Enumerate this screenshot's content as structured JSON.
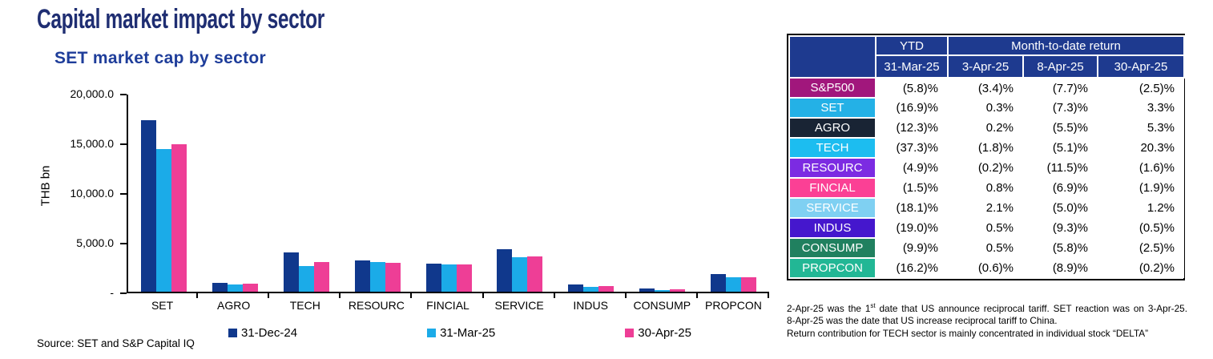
{
  "page": {
    "title": "Capital market impact by sector",
    "source": "Source: SET and S&P Capital IQ"
  },
  "chart_data": {
    "type": "bar",
    "title": "SET market cap by sector",
    "ylabel": "THB bn",
    "ylim": [
      0,
      20000
    ],
    "ytick_labels": [
      "20,000.0",
      "15,000.0",
      "10,000.0",
      "5,000.0",
      "-"
    ],
    "grid": false,
    "legend_position": "bottom",
    "categories": [
      "SET",
      "AGRO",
      "TECH",
      "RESOURC",
      "FINCIAL",
      "SERVICE",
      "INDUS",
      "CONSUMP",
      "PROPCON"
    ],
    "series": [
      {
        "name": "31-Dec-24",
        "color": "#10388c",
        "values": [
          17400,
          900,
          3980,
          3200,
          2880,
          4300,
          700,
          300,
          1830
        ]
      },
      {
        "name": "31-Mar-25",
        "color": "#1babe8",
        "values": [
          14450,
          730,
          2600,
          3000,
          2740,
          3500,
          500,
          200,
          1440
        ]
      },
      {
        "name": "30-Apr-25",
        "color": "#ee3e96",
        "values": [
          15000,
          850,
          3050,
          2950,
          2740,
          3570,
          590,
          230,
          1480
        ]
      }
    ]
  },
  "table": {
    "corner_label": "",
    "ytd_header": "YTD",
    "mtd_header": "Month-to-date return",
    "date_headers": [
      "31-Mar-25",
      "3-Apr-25",
      "8-Apr-25",
      "30-Apr-25"
    ],
    "header_bg": "#1e3a8f",
    "rows": [
      {
        "label": "S&P500",
        "color": "#a1177c",
        "values": [
          "(5.8)%",
          "(3.4)%",
          "(7.7)%",
          "(2.5)%"
        ]
      },
      {
        "label": "SET",
        "color": "#24b1e6",
        "values": [
          "(16.9)%",
          "0.3%",
          "(7.3)%",
          "3.3%"
        ]
      },
      {
        "label": "AGRO",
        "color": "#192434",
        "values": [
          "(12.3)%",
          "0.2%",
          "(5.5)%",
          "5.3%"
        ]
      },
      {
        "label": "TECH",
        "color": "#1cbdf0",
        "values": [
          "(37.3)%",
          "(1.8)%",
          "(5.1)%",
          "20.3%"
        ]
      },
      {
        "label": "RESOURC",
        "color": "#7c2be2",
        "values": [
          "(4.9)%",
          "(0.2)%",
          "(11.5)%",
          "(1.6)%"
        ]
      },
      {
        "label": "FINCIAL",
        "color": "#fb4095",
        "values": [
          "(1.5)%",
          "0.8%",
          "(6.9)%",
          "(1.9)%"
        ]
      },
      {
        "label": "SERVICE",
        "color": "#7fd0f2",
        "values": [
          "(18.1)%",
          "2.1%",
          "(5.0)%",
          "1.2%"
        ]
      },
      {
        "label": "INDUS",
        "color": "#4517cd",
        "values": [
          "(19.0)%",
          "0.5%",
          "(9.3)%",
          "(0.5)%"
        ]
      },
      {
        "label": "CONSUMP",
        "color": "#20805f",
        "values": [
          "(9.9)%",
          "0.5%",
          "(5.8)%",
          "(2.5)%"
        ]
      },
      {
        "label": "PROPCON",
        "color": "#22b795",
        "values": [
          "(16.2)%",
          "(0.6)%",
          "(8.9)%",
          "(0.2)%"
        ]
      }
    ]
  },
  "footnotes": {
    "line1_pre": "2-Apr-25 was the 1",
    "line1_sup": "st",
    "line1_post": " date that US announce reciprocal tariff. SET reaction was on 3-Apr-25.",
    "line2": "8-Apr-25 was the date that US increase reciprocal tariff to China.",
    "line3": "Return contribution for TECH sector is mainly concentrated in individual stock “DELTA”"
  }
}
